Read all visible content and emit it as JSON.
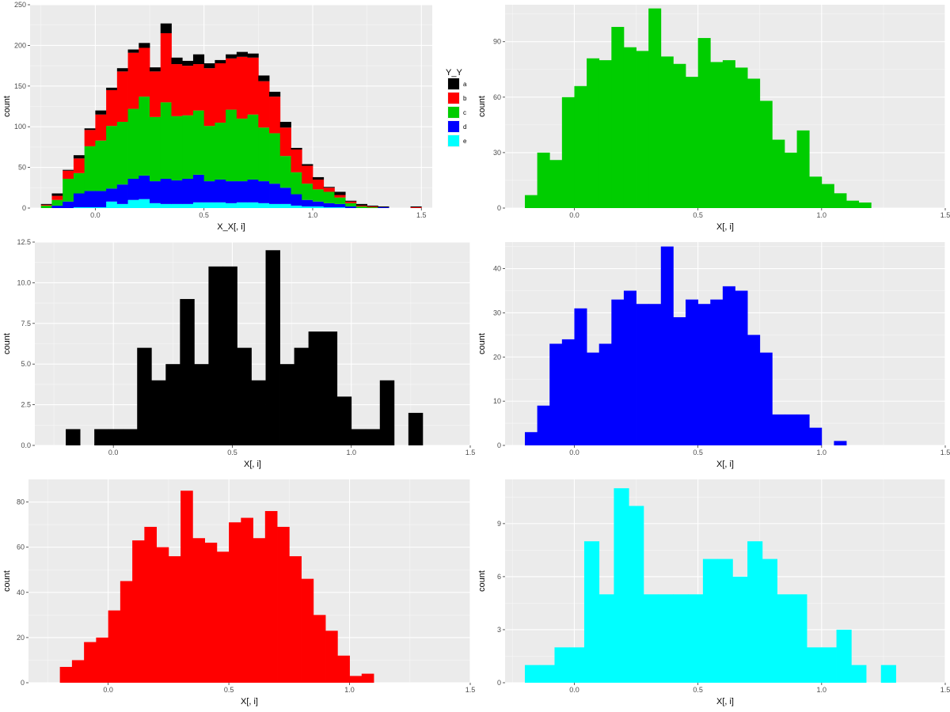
{
  "chart_data": [
    {
      "type": "bar",
      "stacked": true,
      "xlabel": "X_X[, i]",
      "ylabel": "count",
      "x_ticks": [
        "0.0",
        "0.5",
        "1.0",
        "1.5"
      ],
      "y_ticks": [
        "0",
        "50",
        "100",
        "150",
        "200",
        "250"
      ],
      "xlim": [
        -0.3,
        1.55
      ],
      "ylim": [
        0,
        250
      ],
      "bin_edges": [
        -0.25,
        -0.2,
        -0.15,
        -0.1,
        -0.05,
        0.0,
        0.05,
        0.1,
        0.15,
        0.2,
        0.25,
        0.3,
        0.35,
        0.4,
        0.45,
        0.5,
        0.55,
        0.6,
        0.65,
        0.7,
        0.75,
        0.8,
        0.85,
        0.9,
        0.95,
        1.0,
        1.05,
        1.1,
        1.15,
        1.2,
        1.25,
        1.3,
        1.35,
        1.4,
        1.45,
        1.5
      ],
      "legend": {
        "title": "Y_Y",
        "position": "right"
      },
      "series": [
        {
          "name": "a",
          "color": "#000000",
          "values": [
            1,
            3,
            1,
            4,
            2,
            5,
            3,
            4,
            4,
            6,
            5,
            12,
            8,
            6,
            12,
            6,
            4,
            5,
            6,
            5,
            7,
            6,
            7,
            2,
            2,
            3,
            1,
            4,
            1,
            2,
            1,
            1,
            0,
            0,
            1
          ]
        },
        {
          "name": "b",
          "color": "#ff0000",
          "values": [
            1,
            5,
            10,
            18,
            20,
            32,
            44,
            62,
            69,
            60,
            56,
            85,
            64,
            61,
            57,
            71,
            73,
            63,
            76,
            70,
            57,
            45,
            35,
            28,
            22,
            12,
            5,
            3,
            2,
            1,
            1,
            0,
            0,
            0,
            1
          ]
        },
        {
          "name": "c",
          "color": "#00cd00",
          "values": [
            3,
            7,
            28,
            25,
            55,
            62,
            77,
            77,
            86,
            97,
            79,
            94,
            79,
            78,
            79,
            68,
            70,
            88,
            77,
            80,
            66,
            62,
            39,
            27,
            20,
            15,
            14,
            8,
            4,
            2,
            1,
            0,
            0,
            0,
            0
          ]
        },
        {
          "name": "d",
          "color": "#0000ff",
          "values": [
            0,
            3,
            8,
            17,
            20,
            20,
            16,
            24,
            26,
            29,
            27,
            31,
            29,
            31,
            34,
            26,
            28,
            27,
            26,
            28,
            27,
            25,
            20,
            14,
            8,
            6,
            5,
            4,
            2,
            0,
            0,
            1,
            0,
            0,
            0
          ]
        },
        {
          "name": "e",
          "color": "#00ffff",
          "values": [
            0,
            0,
            0,
            1,
            1,
            1,
            8,
            5,
            10,
            11,
            6,
            5,
            5,
            5,
            7,
            7,
            7,
            6,
            7,
            7,
            6,
            5,
            5,
            3,
            2,
            2,
            1,
            1,
            0,
            0,
            0,
            0,
            0,
            0,
            0
          ]
        }
      ]
    },
    {
      "type": "bar",
      "xlabel": "X[, i]",
      "ylabel": "count",
      "color": "#00cd00",
      "x_ticks": [
        "0.0",
        "0.5",
        "1.0",
        "1.5"
      ],
      "y_ticks": [
        "0",
        "30",
        "60",
        "90"
      ],
      "xlim": [
        -0.28,
        1.5
      ],
      "ylim": [
        0,
        110
      ],
      "bin_start": -0.2,
      "bin_width": 0.05,
      "values": [
        7,
        30,
        26,
        60,
        66,
        81,
        80,
        98,
        87,
        85,
        108,
        82,
        78,
        71,
        92,
        79,
        80,
        76,
        70,
        58,
        37,
        30,
        42,
        17,
        13,
        8,
        4,
        3
      ]
    },
    {
      "type": "bar",
      "xlabel": "X[, i]",
      "ylabel": "count",
      "color": "#000000",
      "x_ticks": [
        "0.0",
        "0.5",
        "1.0",
        "1.5"
      ],
      "y_ticks": [
        "0.0",
        "2.5",
        "5.0",
        "7.5",
        "10.0",
        "12.5"
      ],
      "xlim": [
        -0.33,
        1.5
      ],
      "ylim": [
        0,
        12.5
      ],
      "bin_start": -0.2,
      "bin_width": 0.06,
      "values": [
        1,
        0,
        1,
        1,
        1,
        6,
        4,
        5,
        9,
        5,
        11,
        11,
        6,
        4,
        12,
        5,
        6,
        7,
        7,
        3,
        1,
        1,
        4,
        0,
        2
      ]
    },
    {
      "type": "bar",
      "xlabel": "X[, i]",
      "ylabel": "count",
      "color": "#0000ff",
      "x_ticks": [
        "0.0",
        "0.5",
        "1.0",
        "1.5"
      ],
      "y_ticks": [
        "0",
        "10",
        "20",
        "30",
        "40"
      ],
      "xlim": [
        -0.28,
        1.5
      ],
      "ylim": [
        0,
        46
      ],
      "bin_start": -0.2,
      "bin_width": 0.05,
      "values": [
        3,
        9,
        23,
        24,
        31,
        21,
        23,
        33,
        35,
        32,
        32,
        45,
        29,
        33,
        32,
        33,
        36,
        35,
        25,
        21,
        7,
        7,
        7,
        4,
        0,
        1
      ]
    },
    {
      "type": "bar",
      "xlabel": "X[, i]",
      "ylabel": "count",
      "color": "#ff0000",
      "x_ticks": [
        "0.0",
        "0.5",
        "1.0",
        "1.5"
      ],
      "y_ticks": [
        "0",
        "20",
        "40",
        "60",
        "80"
      ],
      "xlim": [
        -0.33,
        1.5
      ],
      "ylim": [
        0,
        90
      ],
      "bin_start": -0.2,
      "bin_width": 0.05,
      "values": [
        7,
        10,
        18,
        20,
        32,
        45,
        63,
        69,
        60,
        56,
        85,
        64,
        62,
        58,
        71,
        73,
        64,
        76,
        69,
        56,
        46,
        30,
        23,
        12,
        3,
        4
      ]
    },
    {
      "type": "bar",
      "xlabel": "X[, i]",
      "ylabel": "count",
      "color": "#00ffff",
      "x_ticks": [
        "0.0",
        "0.5",
        "1.0",
        "1.5"
      ],
      "y_ticks": [
        "0",
        "3",
        "6",
        "9"
      ],
      "xlim": [
        -0.28,
        1.5
      ],
      "ylim": [
        0,
        11.5
      ],
      "bin_start": -0.2,
      "bin_width": 0.06,
      "values": [
        1,
        1,
        2,
        2,
        8,
        5,
        11,
        10,
        5,
        5,
        5,
        5,
        7,
        7,
        6,
        8,
        7,
        5,
        5,
        2,
        2,
        3,
        1,
        0,
        1
      ]
    }
  ]
}
